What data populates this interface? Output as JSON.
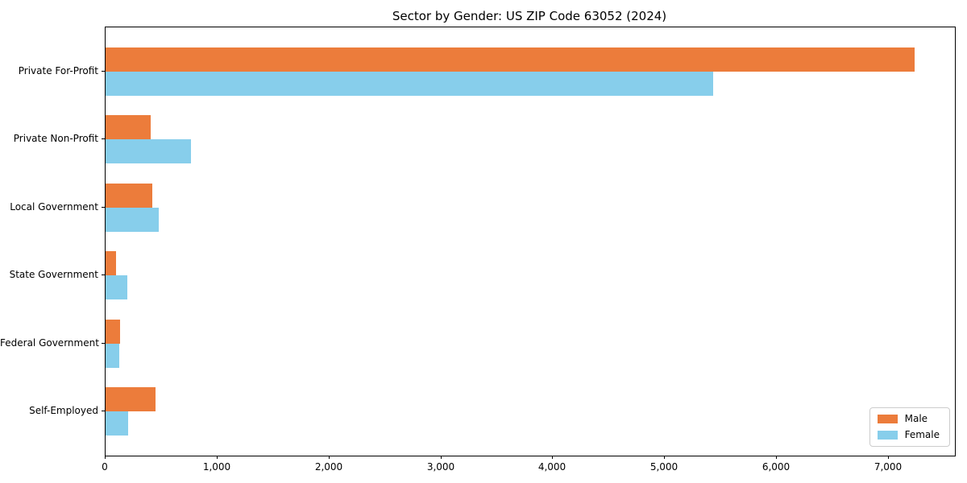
{
  "chart_data": {
    "type": "bar",
    "orientation": "horizontal",
    "title": "Sector by Gender: US ZIP Code 63052 (2024)",
    "categories": [
      "Private For-Profit",
      "Private Non-Profit",
      "Local Government",
      "State Government",
      "Federal Government",
      "Self-Employed"
    ],
    "series": [
      {
        "name": "Male",
        "color": "#EC7C3B",
        "values": [
          7230,
          400,
          420,
          95,
          130,
          445
        ]
      },
      {
        "name": "Female",
        "color": "#87CEEB",
        "values": [
          5430,
          760,
          475,
          195,
          120,
          200
        ]
      }
    ],
    "xlabel": "",
    "ylabel": "",
    "xlim": [
      0,
      7590
    ],
    "xticks": [
      0,
      1000,
      2000,
      3000,
      4000,
      5000,
      6000,
      7000
    ],
    "xtick_labels": [
      "0",
      "1,000",
      "2,000",
      "3,000",
      "4,000",
      "5,000",
      "6,000",
      "7,000"
    ],
    "grid": false,
    "legend": {
      "position": "lower right"
    },
    "colors": {
      "axis": "#000000",
      "background": "#ffffff",
      "legend_border": "#cccccc"
    }
  }
}
